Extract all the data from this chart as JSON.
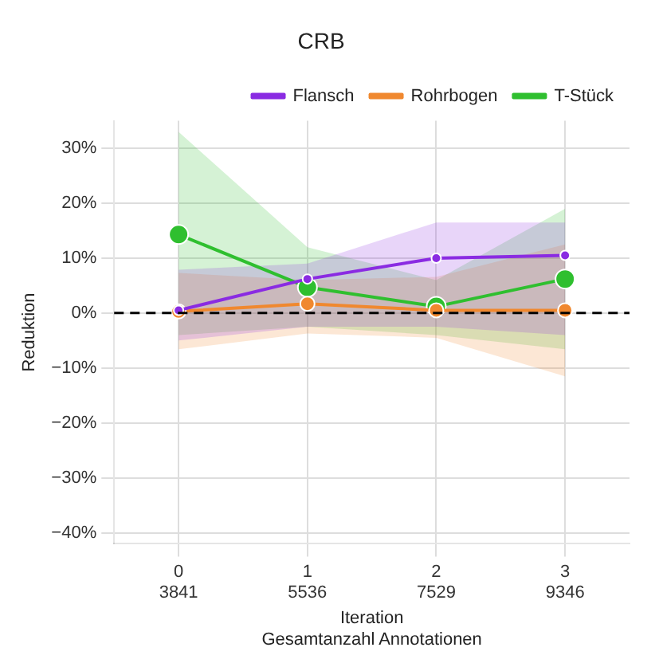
{
  "chart_data": {
    "type": "line",
    "title": "CRB",
    "xlabel": "Iteration\nGesamtanzahl Annotationen",
    "ylabel": "Reduktion",
    "categories": [
      "0\n3841",
      "1\n5536",
      "2\n7529",
      "3\n9346"
    ],
    "series": [
      {
        "name": "Flansch",
        "color": "#8a2be2",
        "values": [
          0.5,
          6.2,
          10,
          10.5
        ],
        "lower": [
          -5,
          -2.5,
          -2.5,
          -4
        ],
        "upper": [
          7.9,
          9,
          16.5,
          16.5
        ]
      },
      {
        "name": "Rohrbogen",
        "color": "#f0882f",
        "values": [
          0.3,
          1.7,
          0.5,
          0.5
        ],
        "lower": [
          -6.6,
          -3.7,
          -4.5,
          -11.5
        ],
        "upper": [
          7.3,
          6,
          6.6,
          12.5
        ]
      },
      {
        "name": "T-Stück",
        "color": "#2fbf2f",
        "values": [
          14.3,
          4.7,
          1.2,
          6.2
        ],
        "lower": [
          -4,
          -2.5,
          -4,
          -6.6
        ],
        "upper": [
          33,
          12,
          6,
          19
        ]
      }
    ],
    "ylim": [
      -42,
      35
    ],
    "yticks": [
      {
        "value": -40,
        "label": "−40%"
      },
      {
        "value": -30,
        "label": "−30%"
      },
      {
        "value": -20,
        "label": "−20%"
      },
      {
        "value": -10,
        "label": "−10%"
      },
      {
        "value": 0,
        "label": "0%"
      },
      {
        "value": 10,
        "label": "10%"
      },
      {
        "value": 20,
        "label": "20%"
      },
      {
        "value": 30,
        "label": "30%"
      }
    ],
    "ref_lines": [
      {
        "axis": "y",
        "value": 0,
        "color": "#000000",
        "line_style": "dashed"
      }
    ],
    "grid": true,
    "legend": "top right",
    "marker": "circle",
    "line_style": "solid"
  }
}
